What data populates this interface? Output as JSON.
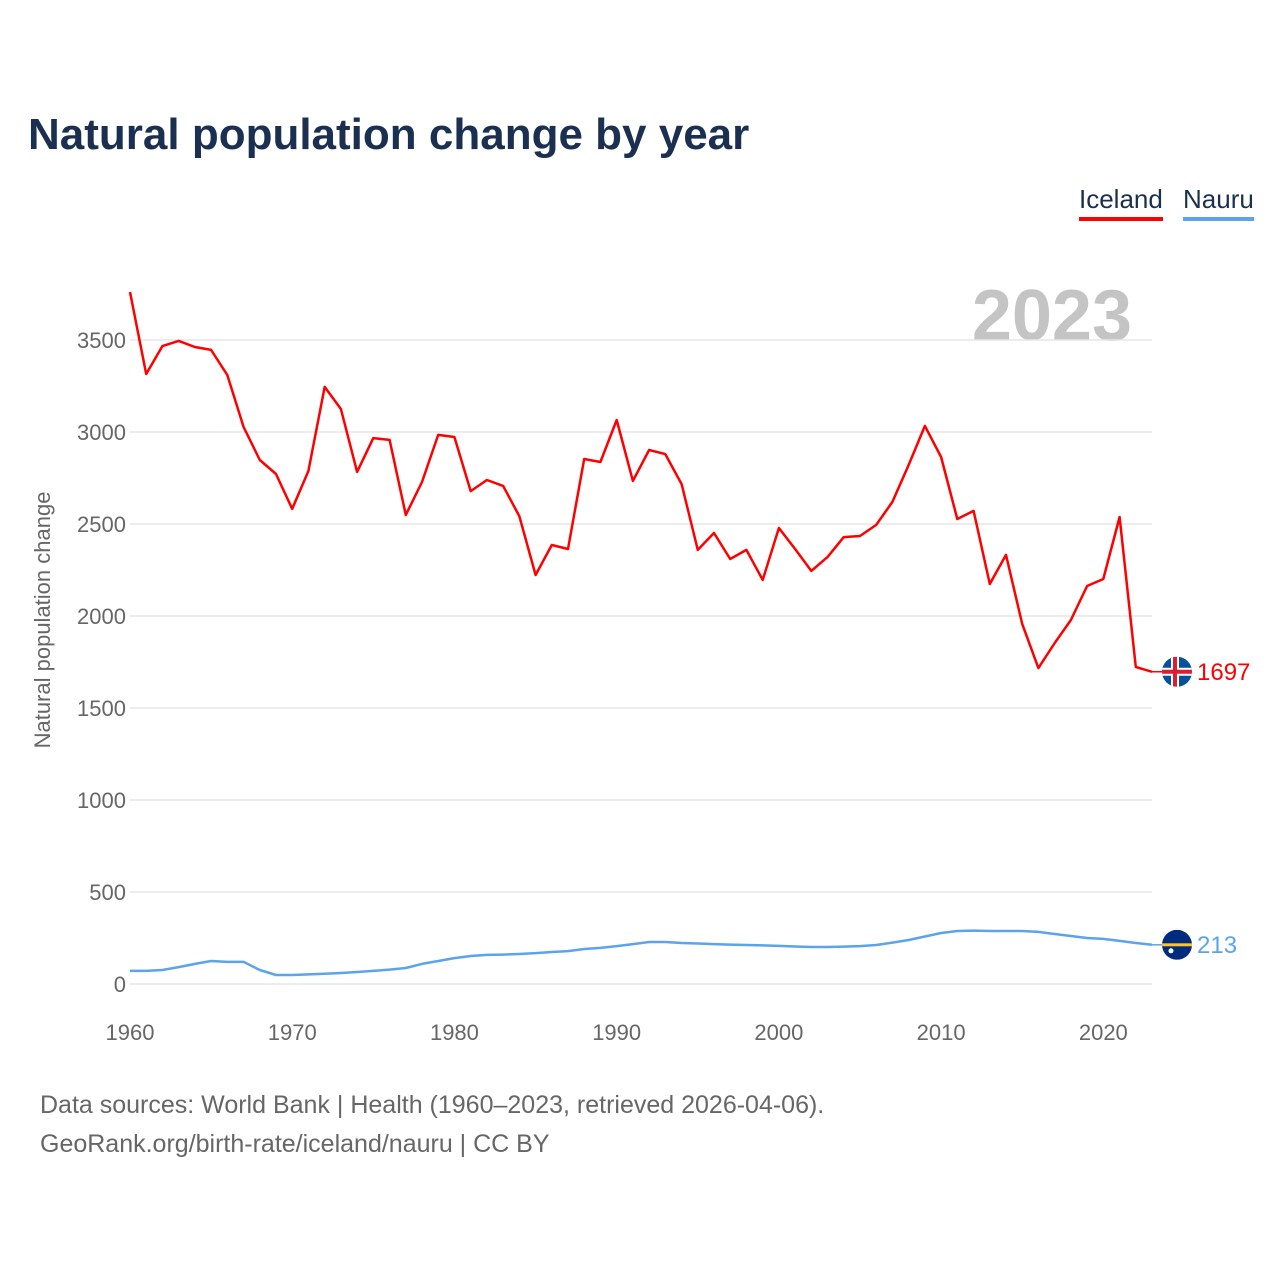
{
  "chart_data": {
    "type": "line",
    "title": "Natural population change by year",
    "ylabel": "Natural population change",
    "xlabel": "",
    "year_label": "2023",
    "xlim": [
      1960,
      2023
    ],
    "ylim": [
      0,
      3800
    ],
    "x_ticks": [
      1960,
      1970,
      1980,
      1990,
      2000,
      2010,
      2020
    ],
    "y_ticks": [
      0,
      500,
      1000,
      1500,
      2000,
      2500,
      3000,
      3500
    ],
    "grid": true,
    "legend_position": "top-right",
    "x": [
      1960,
      1961,
      1962,
      1963,
      1964,
      1965,
      1966,
      1967,
      1968,
      1969,
      1970,
      1971,
      1972,
      1973,
      1974,
      1975,
      1976,
      1977,
      1978,
      1979,
      1980,
      1981,
      1982,
      1983,
      1984,
      1985,
      1986,
      1987,
      1988,
      1989,
      1990,
      1991,
      1992,
      1993,
      1994,
      1995,
      1996,
      1997,
      1998,
      1999,
      2000,
      2001,
      2002,
      2003,
      2004,
      2005,
      2006,
      2007,
      2008,
      2009,
      2010,
      2011,
      2012,
      2013,
      2014,
      2015,
      2016,
      2017,
      2018,
      2019,
      2020,
      2021,
      2022,
      2023
    ],
    "series": [
      {
        "name": "Iceland",
        "color": "#ff0000",
        "end_label": "1697",
        "values": [
          3761,
          3315,
          3467,
          3495,
          3462,
          3446,
          3310,
          3027,
          2848,
          2772,
          2582,
          2788,
          3245,
          3125,
          2783,
          2967,
          2957,
          2549,
          2728,
          2984,
          2973,
          2679,
          2739,
          2707,
          2543,
          2223,
          2386,
          2364,
          2853,
          2837,
          3065,
          2734,
          2902,
          2880,
          2717,
          2359,
          2451,
          2310,
          2359,
          2196,
          2478,
          2364,
          2245,
          2321,
          2429,
          2435,
          2495,
          2620,
          2821,
          3033,
          2864,
          2527,
          2571,
          2174,
          2332,
          1957,
          1717,
          1853,
          1978,
          2163,
          2201,
          2538,
          1723,
          1697
        ]
      },
      {
        "name": "Nauru",
        "color": "#5ba4ec",
        "end_label": "213",
        "values": [
          71,
          71,
          76,
          92,
          109,
          125,
          120,
          120,
          76,
          49,
          49,
          52,
          56,
          60,
          65,
          71,
          78,
          87,
          109,
          125,
          141,
          152,
          158,
          160,
          163,
          168,
          174,
          179,
          190,
          196,
          206,
          217,
          228,
          228,
          223,
          220,
          217,
          214,
          212,
          210,
          207,
          204,
          201,
          201,
          203,
          206,
          212,
          225,
          239,
          258,
          277,
          288,
          290,
          288,
          288,
          288,
          283,
          272,
          261,
          250,
          245,
          234,
          223,
          213
        ]
      }
    ]
  },
  "footer": {
    "line1": "Data sources: World Bank | Health (1960–2023, retrieved 2026-04-06).",
    "line2": "GeoRank.org/birth-rate/iceland/nauru | CC BY"
  }
}
